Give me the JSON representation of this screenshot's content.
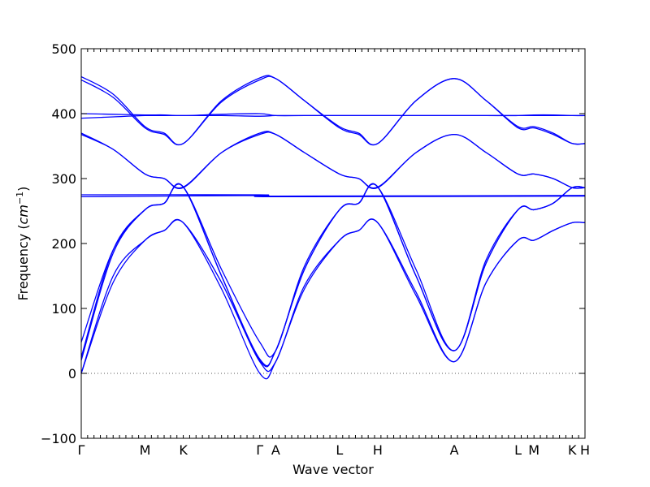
{
  "chart_data": {
    "type": "line",
    "title": "",
    "xlabel": "Wave vector",
    "ylabel_prefix": "Frequency (",
    "ylabel_unit_base": "cm",
    "ylabel_unit_exp": "−1",
    "ylabel_suffix": ")",
    "ylim": [
      -100,
      500
    ],
    "yticks": [
      -100,
      0,
      100,
      200,
      300,
      400,
      500
    ],
    "xlim": [
      0,
      7.9
    ],
    "grid": false,
    "legend": "none",
    "line_color": "#0000ff",
    "zero_line_color": "#555555",
    "high_symmetry_points": [
      {
        "label": "Γ",
        "x": 0.0
      },
      {
        "label": "M",
        "x": 1.0
      },
      {
        "label": "K",
        "x": 1.6
      },
      {
        "label": "Γ",
        "x": 2.8
      },
      {
        "label": "A",
        "x": 3.05
      },
      {
        "label": "L",
        "x": 4.05
      },
      {
        "label": "H",
        "x": 4.65
      },
      {
        "label": "A",
        "x": 5.85
      },
      {
        "label": "L",
        "x": 6.85
      },
      {
        "label": "M",
        "x": 7.1
      },
      {
        "label": "K",
        "x": 7.7
      },
      {
        "label": "H",
        "x": 7.9
      }
    ],
    "series": [
      {
        "x": [
          0,
          0.5,
          1.0,
          1.3,
          1.6,
          2.2,
          2.8,
          3.05,
          3.5,
          4.05,
          4.35,
          4.65,
          5.25,
          5.85,
          6.35,
          6.85,
          7.1,
          7.4,
          7.7,
          7.9
        ],
        "values": [
          0,
          140,
          205,
          220,
          232,
          130,
          0,
          18,
          130,
          205,
          220,
          232,
          120,
          18,
          140,
          205,
          205,
          220,
          232,
          232
        ]
      },
      {
        "x": [
          0,
          0.5,
          1.0,
          1.3,
          1.6,
          2.2,
          2.8,
          3.05,
          3.5,
          4.05,
          4.35,
          4.65,
          5.25,
          5.85,
          6.35,
          6.85,
          7.1,
          7.4,
          7.7,
          7.9
        ],
        "values": [
          0,
          150,
          205,
          220,
          232,
          140,
          18,
          18,
          135,
          205,
          220,
          232,
          125,
          18,
          140,
          205,
          205,
          220,
          232,
          232
        ]
      },
      {
        "x": [
          0,
          0.5,
          1.0,
          1.3,
          1.6,
          2.2,
          2.8,
          3.05,
          3.5,
          4.05,
          4.35,
          4.65,
          5.25,
          5.85,
          6.35,
          6.85,
          7.1,
          7.4,
          7.7,
          7.9
        ],
        "values": [
          20,
          185,
          252,
          262,
          287,
          150,
          22,
          35,
          160,
          252,
          262,
          287,
          150,
          35,
          170,
          252,
          252,
          262,
          286,
          286
        ]
      },
      {
        "x": [
          0,
          0.5,
          1.0,
          1.3,
          1.6,
          2.2,
          2.8,
          3.05,
          3.5,
          4.05,
          4.35,
          4.65,
          5.25,
          5.85,
          6.35,
          6.85,
          7.1,
          7.4,
          7.7,
          7.9
        ],
        "values": [
          25,
          190,
          252,
          262,
          287,
          160,
          48,
          35,
          165,
          252,
          262,
          287,
          160,
          35,
          175,
          252,
          252,
          262,
          286,
          286
        ]
      },
      {
        "x": [
          0,
          0.5,
          1.0,
          1.3,
          1.6,
          2.2,
          2.8,
          3.05,
          3.5,
          4.05,
          4.35,
          4.65,
          5.25,
          5.85,
          6.35,
          6.85,
          7.1,
          7.4,
          7.7,
          7.9
        ],
        "values": [
          48,
          190,
          252,
          262,
          287,
          150,
          20,
          35,
          160,
          252,
          262,
          287,
          150,
          35,
          170,
          252,
          252,
          262,
          286,
          286
        ]
      },
      {
        "x": [
          0,
          2.8,
          3.05,
          7.9
        ],
        "values": [
          272,
          274,
          272,
          273
        ]
      },
      {
        "x": [
          0,
          2.8,
          3.05,
          7.9
        ],
        "values": [
          275,
          275,
          273,
          274
        ]
      },
      {
        "x": [
          0,
          0.5,
          1.0,
          1.3,
          1.6,
          2.2,
          2.8,
          3.05,
          3.5,
          4.05,
          4.35,
          4.65,
          5.25,
          5.85,
          6.35,
          6.85,
          7.1,
          7.4,
          7.7,
          7.9
        ],
        "values": [
          368,
          345,
          307,
          300,
          287,
          340,
          368,
          368,
          340,
          307,
          300,
          287,
          340,
          368,
          340,
          307,
          307,
          300,
          286,
          286
        ]
      },
      {
        "x": [
          0,
          0.5,
          1.0,
          1.3,
          1.6,
          2.2,
          2.8,
          3.05,
          3.5,
          4.05,
          4.35,
          4.65,
          5.25,
          5.85,
          6.35,
          6.85,
          7.1,
          7.4,
          7.7,
          7.9
        ],
        "values": [
          370,
          345,
          307,
          300,
          286,
          340,
          370,
          368,
          340,
          307,
          300,
          286,
          340,
          368,
          340,
          307,
          307,
          300,
          286,
          286
        ]
      },
      {
        "x": [
          0,
          0.5,
          1.0,
          1.3,
          1.6,
          2.2,
          2.8,
          3.05,
          3.5,
          4.05,
          4.35,
          4.65,
          5.25,
          5.85,
          6.35,
          6.85,
          7.1,
          7.4,
          7.7,
          7.9
        ],
        "values": [
          400,
          399,
          398,
          398,
          397,
          399,
          400,
          397,
          397,
          397,
          397,
          397,
          397,
          397,
          397,
          397,
          398,
          398,
          397,
          397
        ]
      },
      {
        "x": [
          0,
          0.5,
          1.0,
          1.3,
          1.6,
          2.2,
          2.8,
          3.05,
          3.5,
          4.05,
          4.35,
          4.65,
          5.25,
          5.85,
          6.35,
          6.85,
          7.1,
          7.4,
          7.7,
          7.9
        ],
        "values": [
          393,
          395,
          397,
          397,
          397,
          397,
          396,
          397,
          397,
          397,
          397,
          397,
          397,
          397,
          397,
          397,
          397,
          397,
          397,
          397
        ]
      },
      {
        "x": [
          0,
          0.5,
          1.0,
          1.3,
          1.6,
          2.2,
          2.8,
          3.05,
          3.5,
          4.05,
          4.35,
          4.65,
          5.25,
          5.85,
          6.35,
          6.85,
          7.1,
          7.4,
          7.7,
          7.9
        ],
        "values": [
          457,
          430,
          380,
          370,
          354,
          420,
          455,
          454,
          420,
          380,
          370,
          354,
          420,
          454,
          420,
          380,
          380,
          370,
          354,
          354
        ]
      },
      {
        "x": [
          0,
          0.5,
          1.0,
          1.3,
          1.6,
          2.2,
          2.8,
          3.05,
          3.5,
          4.05,
          4.35,
          4.65,
          5.25,
          5.85,
          6.35,
          6.85,
          7.1,
          7.4,
          7.7,
          7.9
        ],
        "values": [
          452,
          425,
          378,
          368,
          354,
          418,
          452,
          454,
          420,
          378,
          368,
          354,
          420,
          454,
          420,
          378,
          378,
          368,
          354,
          354
        ]
      }
    ]
  }
}
